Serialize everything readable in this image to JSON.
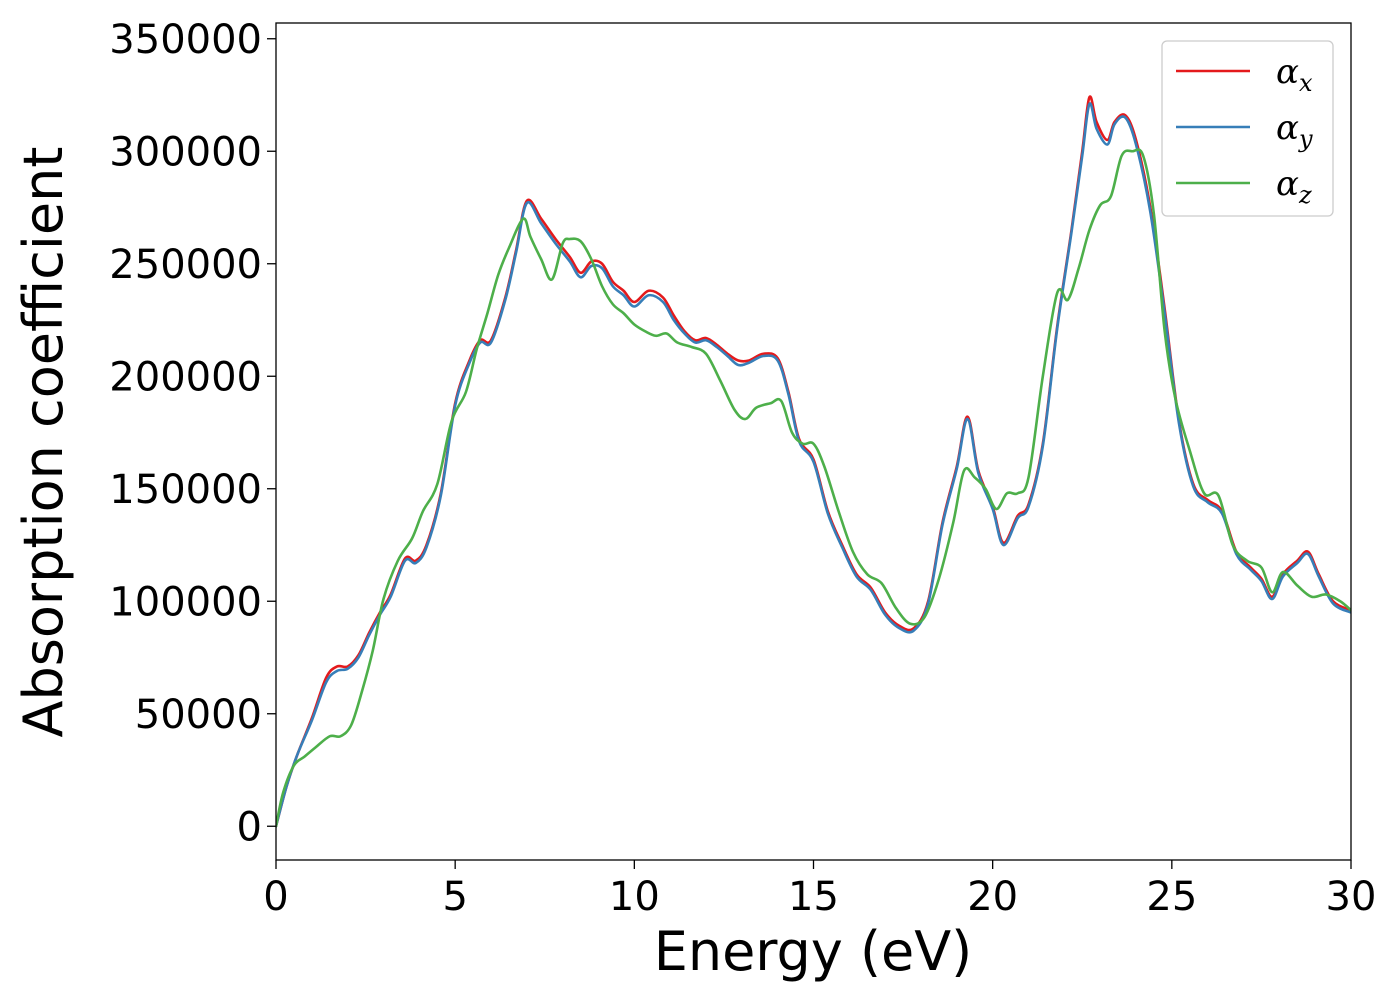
{
  "chart_data": {
    "type": "line",
    "title": "",
    "xlabel": "Energy (eV)",
    "ylabel": "Absorption coefficient",
    "xlim": [
      0,
      30
    ],
    "ylim": [
      -15000,
      357000
    ],
    "xticks": [
      0,
      5,
      10,
      15,
      20,
      25,
      30
    ],
    "yticks": [
      0,
      50000,
      100000,
      150000,
      200000,
      250000,
      300000,
      350000
    ],
    "xtick_labels": [
      "0",
      "5",
      "10",
      "15",
      "20",
      "25",
      "30"
    ],
    "ytick_labels": [
      "0",
      "50000",
      "100000",
      "150000",
      "200000",
      "250000",
      "300000",
      "350000"
    ],
    "grid": false,
    "legend_placement": "top-right",
    "series": [
      {
        "name": "α",
        "subscript": "x",
        "color": "#e41a1c",
        "x": [
          0,
          0.3,
          0.6,
          1.0,
          1.4,
          1.7,
          2.0,
          2.3,
          2.6,
          2.9,
          3.2,
          3.6,
          3.9,
          4.2,
          4.6,
          5.0,
          5.4,
          5.7,
          6.0,
          6.4,
          6.7,
          7.0,
          7.4,
          7.8,
          8.2,
          8.5,
          8.8,
          9.1,
          9.4,
          9.7,
          10.0,
          10.4,
          10.8,
          11.1,
          11.4,
          11.7,
          12.0,
          12.3,
          12.6,
          12.9,
          13.2,
          13.6,
          14.0,
          14.3,
          14.6,
          15.0,
          15.4,
          15.8,
          16.2,
          16.6,
          17.0,
          17.4,
          17.8,
          18.2,
          18.6,
          19.0,
          19.3,
          19.6,
          20.0,
          20.3,
          20.7,
          21.0,
          21.4,
          21.8,
          22.2,
          22.5,
          22.7,
          22.9,
          23.2,
          23.4,
          23.7,
          24.0,
          24.4,
          24.8,
          25.2,
          25.6,
          26.0,
          26.4,
          26.8,
          27.2,
          27.5,
          27.8,
          28.1,
          28.5,
          28.8,
          29.1,
          29.5,
          30.0
        ],
        "y": [
          0,
          18000,
          32000,
          48000,
          66000,
          71000,
          71000,
          76000,
          86000,
          95000,
          103000,
          119000,
          118000,
          125000,
          148000,
          188000,
          207000,
          216000,
          216000,
          235000,
          256000,
          278000,
          270000,
          261000,
          253000,
          246000,
          251000,
          250000,
          242000,
          238000,
          233000,
          238000,
          235000,
          227000,
          220000,
          216000,
          217000,
          214000,
          210000,
          207000,
          207000,
          210000,
          208000,
          193000,
          172000,
          163000,
          140000,
          125000,
          112000,
          106000,
          95000,
          89000,
          88000,
          100000,
          135000,
          160000,
          182000,
          158000,
          142000,
          126000,
          138000,
          143000,
          170000,
          222000,
          265000,
          300000,
          324000,
          313000,
          305000,
          313000,
          316000,
          305000,
          275000,
          230000,
          180000,
          152000,
          145000,
          140000,
          122000,
          115000,
          110000,
          102000,
          112000,
          118000,
          122000,
          112000,
          100000,
          96000
        ]
      },
      {
        "name": "α",
        "subscript": "y",
        "color": "#377eb8",
        "x": [
          0,
          0.3,
          0.6,
          1.0,
          1.4,
          1.7,
          2.0,
          2.3,
          2.6,
          2.9,
          3.2,
          3.6,
          3.9,
          4.2,
          4.6,
          5.0,
          5.4,
          5.7,
          6.0,
          6.4,
          6.7,
          7.0,
          7.4,
          7.8,
          8.2,
          8.5,
          8.8,
          9.1,
          9.4,
          9.7,
          10.0,
          10.4,
          10.8,
          11.1,
          11.4,
          11.7,
          12.0,
          12.3,
          12.6,
          12.9,
          13.2,
          13.6,
          14.0,
          14.3,
          14.6,
          15.0,
          15.4,
          15.8,
          16.2,
          16.6,
          17.0,
          17.4,
          17.8,
          18.2,
          18.6,
          19.0,
          19.3,
          19.6,
          20.0,
          20.3,
          20.7,
          21.0,
          21.4,
          21.8,
          22.2,
          22.5,
          22.7,
          22.9,
          23.2,
          23.4,
          23.7,
          24.0,
          24.4,
          24.8,
          25.2,
          25.6,
          26.0,
          26.4,
          26.8,
          27.2,
          27.5,
          27.8,
          28.1,
          28.5,
          28.8,
          29.1,
          29.5,
          30.0
        ],
        "y": [
          0,
          18000,
          32000,
          47000,
          64000,
          69000,
          70000,
          75000,
          85000,
          94000,
          102000,
          118000,
          117000,
          124000,
          147000,
          187000,
          206000,
          215000,
          215000,
          234000,
          255000,
          277000,
          268000,
          259000,
          251000,
          244000,
          249000,
          248000,
          240000,
          236000,
          231000,
          236000,
          233000,
          225000,
          219000,
          215000,
          216000,
          213000,
          209000,
          205000,
          206000,
          209000,
          207000,
          192000,
          171000,
          162000,
          139000,
          124000,
          111000,
          105000,
          94000,
          88000,
          87000,
          99000,
          134000,
          159000,
          181000,
          157000,
          141000,
          125000,
          137000,
          142000,
          169000,
          221000,
          264000,
          298000,
          321000,
          310000,
          303000,
          312000,
          315000,
          303000,
          273000,
          228000,
          179000,
          151000,
          144000,
          139000,
          121000,
          114000,
          109000,
          101000,
          111000,
          117000,
          121000,
          111000,
          99000,
          95000
        ]
      },
      {
        "name": "α",
        "subscript": "z",
        "color": "#4daf4a",
        "x": [
          0,
          0.2,
          0.5,
          0.8,
          1.1,
          1.5,
          1.8,
          2.1,
          2.4,
          2.7,
          3.0,
          3.4,
          3.8,
          4.1,
          4.5,
          4.9,
          5.3,
          5.6,
          5.9,
          6.2,
          6.5,
          6.9,
          7.1,
          7.4,
          7.7,
          8.0,
          8.2,
          8.5,
          8.8,
          9.1,
          9.4,
          9.7,
          10.0,
          10.3,
          10.6,
          10.9,
          11.2,
          11.6,
          12.0,
          12.4,
          12.8,
          13.1,
          13.4,
          13.8,
          14.1,
          14.4,
          14.7,
          15.0,
          15.3,
          15.7,
          16.1,
          16.5,
          16.9,
          17.3,
          17.7,
          18.1,
          18.5,
          18.9,
          19.2,
          19.5,
          19.8,
          20.1,
          20.4,
          20.7,
          21.0,
          21.4,
          21.8,
          22.1,
          22.4,
          22.7,
          23.0,
          23.3,
          23.6,
          23.9,
          24.2,
          24.5,
          24.8,
          25.1,
          25.5,
          25.9,
          26.3,
          26.7,
          27.1,
          27.5,
          27.8,
          28.1,
          28.5,
          28.9,
          29.3,
          29.7,
          30.0
        ],
        "y": [
          0,
          15000,
          27000,
          31000,
          35000,
          40000,
          40000,
          45000,
          60000,
          78000,
          101000,
          118000,
          128000,
          140000,
          152000,
          180000,
          193000,
          212000,
          228000,
          245000,
          257000,
          270000,
          262000,
          252000,
          243000,
          259000,
          261000,
          260000,
          252000,
          240000,
          232000,
          228000,
          223000,
          220000,
          218000,
          219000,
          215000,
          213000,
          210000,
          198000,
          185000,
          181000,
          186000,
          188000,
          189000,
          175000,
          170000,
          170000,
          160000,
          140000,
          122000,
          112000,
          108000,
          97000,
          90000,
          93000,
          110000,
          135000,
          158000,
          155000,
          150000,
          141000,
          148000,
          148000,
          155000,
          200000,
          237000,
          234000,
          248000,
          265000,
          276000,
          280000,
          298000,
          300000,
          298000,
          272000,
          220000,
          190000,
          167000,
          148000,
          147000,
          125000,
          118000,
          115000,
          104000,
          113000,
          107000,
          102000,
          103000,
          100000,
          96000
        ]
      }
    ]
  }
}
